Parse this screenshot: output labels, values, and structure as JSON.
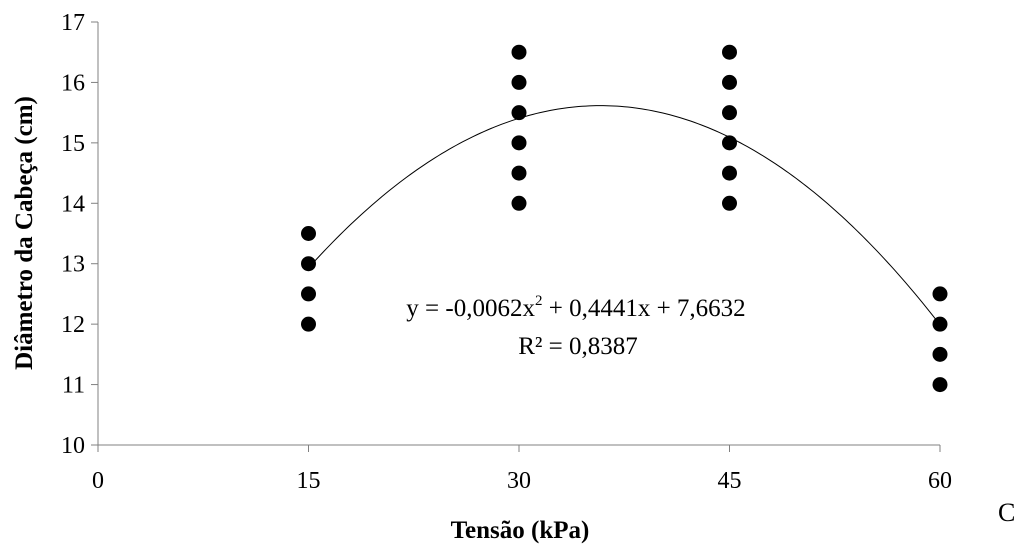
{
  "chart_data": {
    "type": "scatter",
    "xlabel": "Tensão (kPa)",
    "ylabel": "Diâmetro da Cabeça (cm)",
    "xlim": [
      0,
      60
    ],
    "ylim": [
      10,
      17
    ],
    "x_ticks": [
      "0",
      "15",
      "30",
      "45",
      "60"
    ],
    "y_ticks": [
      "10",
      "11",
      "12",
      "13",
      "14",
      "15",
      "16",
      "17"
    ],
    "grid": false,
    "points": [
      {
        "x": 15,
        "y": 12.0
      },
      {
        "x": 15,
        "y": 12.5
      },
      {
        "x": 15,
        "y": 13.0
      },
      {
        "x": 15,
        "y": 13.5
      },
      {
        "x": 30,
        "y": 14.0
      },
      {
        "x": 30,
        "y": 14.5
      },
      {
        "x": 30,
        "y": 15.0
      },
      {
        "x": 30,
        "y": 15.5
      },
      {
        "x": 30,
        "y": 16.0
      },
      {
        "x": 30,
        "y": 16.5
      },
      {
        "x": 45,
        "y": 14.0
      },
      {
        "x": 45,
        "y": 14.5
      },
      {
        "x": 45,
        "y": 15.0
      },
      {
        "x": 45,
        "y": 15.5
      },
      {
        "x": 45,
        "y": 16.0
      },
      {
        "x": 45,
        "y": 16.5
      },
      {
        "x": 60,
        "y": 11.0
      },
      {
        "x": 60,
        "y": 11.5
      },
      {
        "x": 60,
        "y": 12.0
      },
      {
        "x": 60,
        "y": 12.5
      }
    ],
    "trendline": {
      "type": "polynomial",
      "coefficients": {
        "a": -0.0062,
        "b": 0.4441,
        "c": 7.6632
      },
      "x_range": [
        15,
        60
      ],
      "equation_prefix": "y = -0,0062x",
      "equation_suffix": " + 0,4441x + 7,6632",
      "r2_label": "R² = 0,8387"
    }
  },
  "panel_label": "C"
}
